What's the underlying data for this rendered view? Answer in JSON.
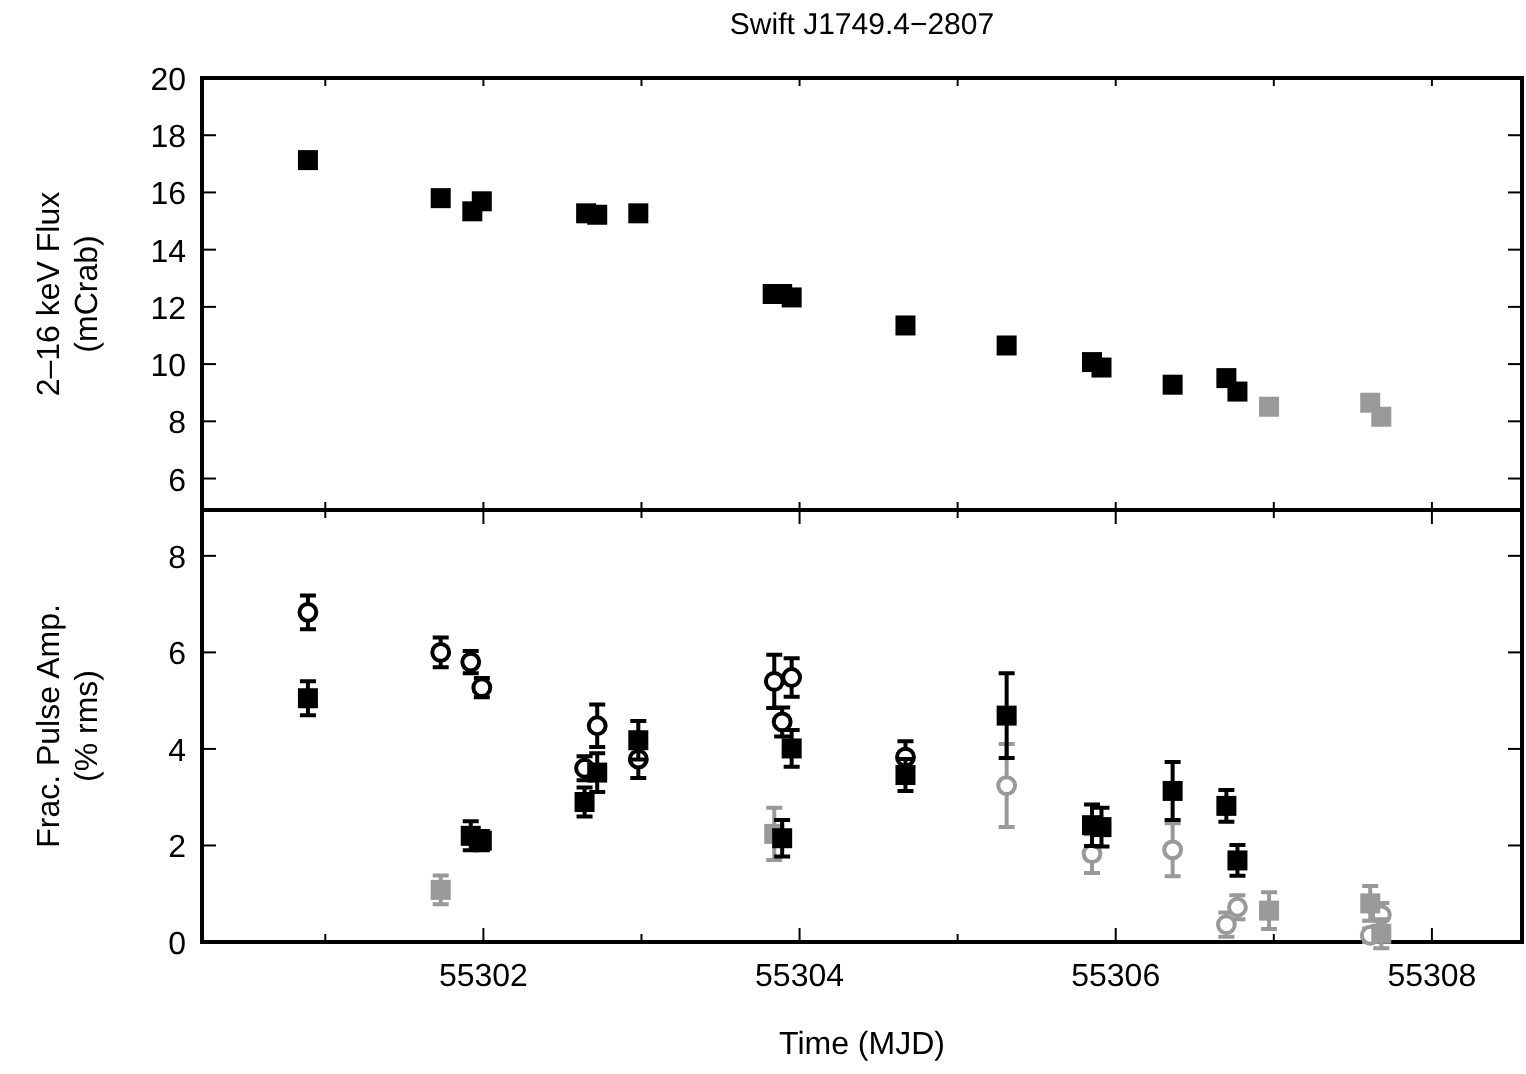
{
  "chart_data": [
    {
      "type": "scatter",
      "title": "Swift J1749.4−2807",
      "ylabel": "2–16 keV Flux\n(mCrab)",
      "xlim": [
        55300.22,
        55308.57
      ],
      "ylim": [
        4.9,
        20
      ],
      "tick_labels": "y",
      "grid": false,
      "xticks": [
        {
          "value": 55301,
          "label": null
        },
        {
          "value": 55302,
          "label": null
        },
        {
          "value": 55303,
          "label": null
        },
        {
          "value": 55304,
          "label": null
        },
        {
          "value": 55305,
          "label": null
        },
        {
          "value": 55306,
          "label": null
        },
        {
          "value": 55307,
          "label": null
        },
        {
          "value": 55308,
          "label": null
        }
      ],
      "yticks": [
        6,
        8,
        10,
        12,
        14,
        16,
        18,
        20
      ],
      "series": [
        {
          "color": "#000000",
          "marker": "square",
          "x": [
            55300.89,
            55301.73,
            55301.93,
            55301.99,
            55302.65,
            55302.72,
            55302.98,
            55303.83,
            55303.89,
            55303.95,
            55304.67,
            55305.31,
            55305.85,
            55305.91,
            55306.36,
            55306.7,
            55306.77
          ],
          "values": [
            17.13,
            15.8,
            15.34,
            15.69,
            15.27,
            15.22,
            15.27,
            12.45,
            12.45,
            12.33,
            11.35,
            10.65,
            10.07,
            9.88,
            9.28,
            9.51,
            9.04
          ]
        },
        {
          "color": "#999999",
          "marker": "square",
          "x": [
            55306.97,
            55307.61,
            55307.68
          ],
          "values": [
            8.51,
            8.65,
            8.16
          ]
        }
      ]
    },
    {
      "type": "scatter",
      "xlabel": "Time (MJD)",
      "ylabel": "Frac. Pulse Amp.\n(% rms)",
      "xlim": [
        55300.22,
        55308.57
      ],
      "ylim": [
        0,
        8.95
      ],
      "grid": false,
      "xticks": [
        {
          "value": 55301,
          "label": null
        },
        55302,
        {
          "value": 55303,
          "label": null
        },
        55304,
        {
          "value": 55305,
          "label": null
        },
        55306,
        {
          "value": 55307,
          "label": null
        },
        55308
      ],
      "yticks": [
        0,
        2,
        4,
        6,
        8
      ],
      "series": [
        {
          "color": "#000000",
          "marker": "circle",
          "x": [
            55300.89,
            55301.73,
            55301.92,
            55301.99,
            55302.64,
            55302.72,
            55302.98,
            55303.84,
            55303.89,
            55303.95,
            55304.67
          ],
          "values": [
            6.83,
            6.0,
            5.8,
            5.27,
            3.6,
            4.48,
            3.79,
            5.4,
            4.56,
            5.48,
            3.83
          ],
          "errors": [
            0.35,
            0.31,
            0.23,
            0.2,
            0.25,
            0.44,
            0.39,
            0.55,
            0.3,
            0.4,
            0.33
          ]
        },
        {
          "color": "#999999",
          "marker": "circle",
          "x": [
            55305.31,
            55305.85,
            55306.36,
            55306.7,
            55306.77,
            55307.61,
            55307.68
          ],
          "values": [
            3.24,
            1.83,
            1.91,
            0.36,
            0.72,
            0.14,
            0.56
          ],
          "errors": [
            0.86,
            0.4,
            0.55,
            0.25,
            0.25,
            0.14,
            0.25
          ]
        },
        {
          "color": "#999999",
          "marker": "square",
          "x": [
            55301.73,
            55303.84,
            55306.97,
            55307.61,
            55307.68
          ],
          "values": [
            1.08,
            2.24,
            0.65,
            0.8,
            0.17
          ],
          "errors": [
            0.3,
            0.54,
            0.38,
            0.36,
            0.3
          ]
        },
        {
          "color": "#000000",
          "marker": "square",
          "x": [
            55300.89,
            55301.92,
            55301.99,
            55302.64,
            55302.72,
            55302.98,
            55303.89,
            55303.95,
            55304.67,
            55305.31,
            55305.85,
            55305.91,
            55306.36,
            55306.7,
            55306.77
          ],
          "values": [
            5.05,
            2.2,
            2.1,
            2.9,
            3.51,
            4.18,
            2.15,
            4.01,
            3.46,
            4.69,
            2.42,
            2.38,
            3.13,
            2.82,
            1.69
          ],
          "errors": [
            0.35,
            0.3,
            0.2,
            0.3,
            0.4,
            0.4,
            0.38,
            0.38,
            0.33,
            0.88,
            0.43,
            0.4,
            0.6,
            0.33,
            0.32
          ]
        }
      ]
    }
  ]
}
